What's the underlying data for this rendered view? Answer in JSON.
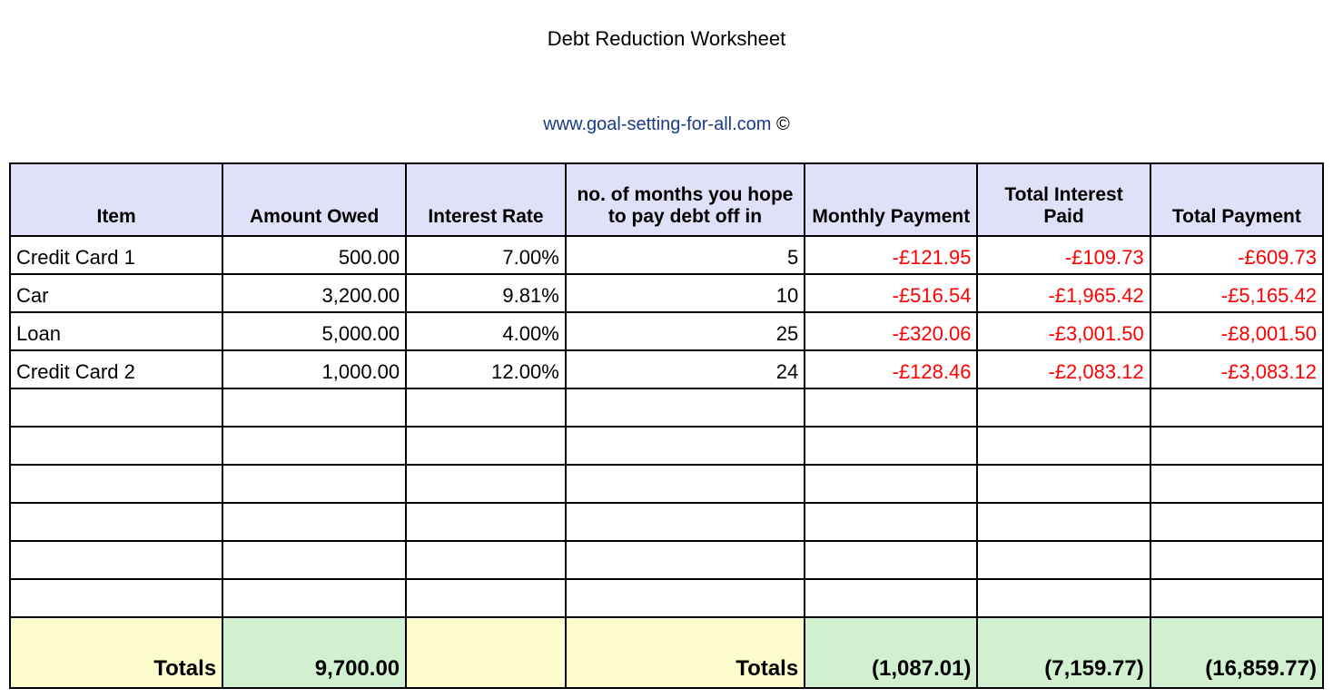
{
  "title": "Debt Reduction Worksheet",
  "link_text": "www.goal-setting-for-all.com",
  "copyright_symbol": "©",
  "table": {
    "header_bg": "#e0e0f8",
    "border_color": "#000000",
    "neg_color": "#ff0000",
    "totals_yellow": "#fcfccc",
    "totals_green": "#d0f0d0",
    "columns": [
      "Item",
      "Amount Owed",
      "Interest Rate",
      "no. of months you hope to pay debt off in",
      "Monthly Payment",
      "Total Interest Paid",
      "Total Payment"
    ],
    "rows": [
      {
        "item": "Credit Card 1",
        "amount": "500.00",
        "rate": "7.00%",
        "months": "5",
        "monthly": "-£121.95",
        "interest": "-£109.73",
        "total": "-£609.73"
      },
      {
        "item": "Car",
        "amount": "3,200.00",
        "rate": "9.81%",
        "months": "10",
        "monthly": "-£516.54",
        "interest": "-£1,965.42",
        "total": "-£5,165.42"
      },
      {
        "item": "Loan",
        "amount": "5,000.00",
        "rate": "4.00%",
        "months": "25",
        "monthly": "-£320.06",
        "interest": "-£3,001.50",
        "total": "-£8,001.50"
      },
      {
        "item": "Credit Card 2",
        "amount": "1,000.00",
        "rate": "12.00%",
        "months": "24",
        "monthly": "-£128.46",
        "interest": "-£2,083.12",
        "total": "-£3,083.12"
      }
    ],
    "empty_row_count": 6,
    "totals": {
      "label_left": "Totals",
      "amount": "9,700.00",
      "label_right": "Totals",
      "monthly": "(1,087.01)",
      "interest": "(7,159.77)",
      "total": "(16,859.77)"
    }
  }
}
